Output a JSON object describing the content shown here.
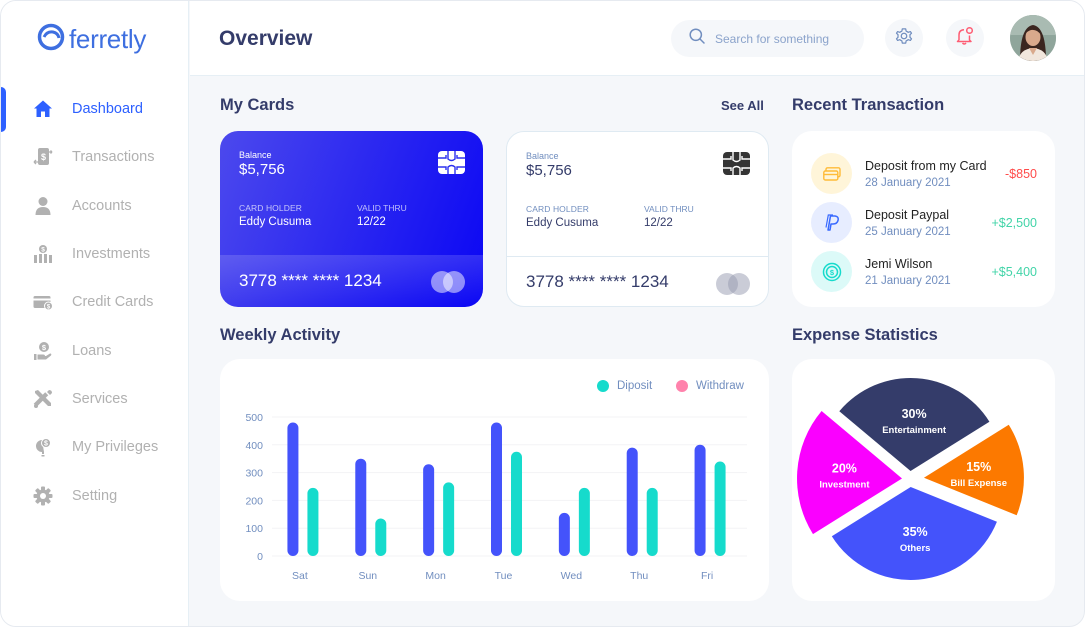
{
  "brand": {
    "name": "ferretly",
    "color": "#3e6fe0"
  },
  "sidebar": {
    "items": [
      {
        "label": "Dashboard",
        "icon": "home-icon",
        "active": true
      },
      {
        "label": "Transactions",
        "icon": "transfer-icon",
        "active": false
      },
      {
        "label": "Accounts",
        "icon": "user-icon",
        "active": false
      },
      {
        "label": "Investments",
        "icon": "investment-icon",
        "active": false
      },
      {
        "label": "Credit Cards",
        "icon": "credit-card-icon",
        "active": false
      },
      {
        "label": "Loans",
        "icon": "loan-icon",
        "active": false
      },
      {
        "label": "Services",
        "icon": "tools-icon",
        "active": false
      },
      {
        "label": "My Privileges",
        "icon": "privilege-icon",
        "active": false
      },
      {
        "label": "Setting",
        "icon": "gear-icon",
        "active": false
      }
    ]
  },
  "header": {
    "title": "Overview",
    "search_placeholder": "Search for something"
  },
  "my_cards": {
    "title": "My Cards",
    "see_all": "See All",
    "cards": [
      {
        "style": "blue",
        "balance_label": "Balance",
        "balance": "$5,756",
        "holder_label": "CARD HOLDER",
        "holder": "Eddy Cusuma",
        "valid_label": "VALID THRU",
        "valid": "12/22",
        "number": "3778 **** **** 1234"
      },
      {
        "style": "white",
        "balance_label": "Balance",
        "balance": "$5,756",
        "holder_label": "CARD HOLDER",
        "holder": "Eddy Cusuma",
        "valid_label": "VALID THRU",
        "valid": "12/22",
        "number": "3778 **** **** 1234"
      }
    ]
  },
  "recent_transactions": {
    "title": "Recent Transaction",
    "items": [
      {
        "title": "Deposit from my Card",
        "date": "28 January 2021",
        "amount": "-$850",
        "type": "debit",
        "icon": "card-icon",
        "icon_bg": "#fff5d9",
        "icon_color": "#ffbb38"
      },
      {
        "title": "Deposit Paypal",
        "date": "25 January 2021",
        "amount": "+$2,500",
        "type": "credit",
        "icon": "paypal-icon",
        "icon_bg": "#e7edff",
        "icon_color": "#396aff"
      },
      {
        "title": "Jemi Wilson",
        "date": "21 January 2021",
        "amount": "+$5,400",
        "type": "credit",
        "icon": "coin-icon",
        "icon_bg": "#dcfaf8",
        "icon_color": "#16dbcc"
      }
    ]
  },
  "weekly_activity": {
    "title": "Weekly Activity"
  },
  "expense_statistics": {
    "title": "Expense Statistics"
  },
  "chart_data": [
    {
      "type": "bar",
      "title": "Weekly Activity",
      "categories": [
        "Sat",
        "Sun",
        "Mon",
        "Tue",
        "Wed",
        "Thu",
        "Fri"
      ],
      "series": [
        {
          "name": "Withdraw",
          "legend_color": "#ff82ac",
          "bar_color": "#4453fb",
          "values": [
            480,
            350,
            330,
            480,
            155,
            390,
            400
          ]
        },
        {
          "name": "Diposit",
          "legend_color": "#16dbcc",
          "bar_color": "#16dbcc",
          "values": [
            245,
            135,
            265,
            375,
            245,
            245,
            340
          ]
        }
      ],
      "legend_order": [
        "Diposit",
        "Withdraw"
      ],
      "legend_position": "top-right",
      "yticks": [
        0,
        100,
        200,
        300,
        400,
        500
      ],
      "ylim": [
        0,
        500
      ],
      "grid": true,
      "xlabel": "",
      "ylabel": ""
    },
    {
      "type": "pie",
      "title": "Expense Statistics",
      "slices": [
        {
          "label": "Entertainment",
          "value": 30,
          "display": "30%",
          "color": "#343c6a"
        },
        {
          "label": "Bill Expense",
          "value": 15,
          "display": "15%",
          "color": "#fc7900"
        },
        {
          "label": "Others",
          "value": 35,
          "display": "35%",
          "color": "#4453fb"
        },
        {
          "label": "Investment",
          "value": 20,
          "display": "20%",
          "color": "#fa00ff"
        }
      ]
    }
  ]
}
